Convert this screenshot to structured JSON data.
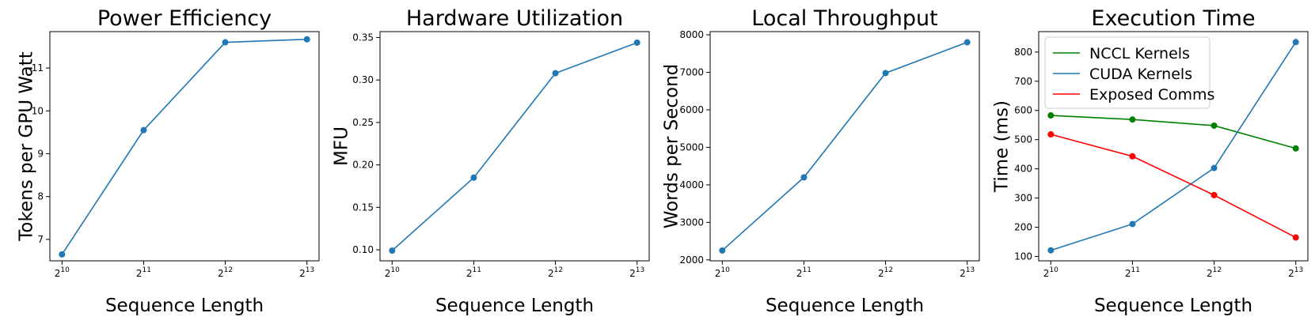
{
  "chart_data": [
    {
      "type": "line",
      "title": "Power Efficiency",
      "xlabel": "Sequence Length",
      "ylabel": "Tokens per GPU Watt",
      "x_tick_base": "2",
      "x": [
        10,
        11,
        12,
        13
      ],
      "ylim": [
        6.5,
        11.85
      ],
      "yticks": [
        "7",
        "8",
        "9",
        "10",
        "11"
      ],
      "series": [
        {
          "color": "#1f77b4",
          "values": [
            6.65,
            9.55,
            11.6,
            11.67
          ]
        }
      ]
    },
    {
      "type": "line",
      "title": "Hardware Utilization",
      "xlabel": "Sequence Length",
      "ylabel": "MFU",
      "x_tick_base": "2",
      "x": [
        10,
        11,
        12,
        13
      ],
      "ylim": [
        0.087,
        0.357
      ],
      "yticks": [
        "0.10",
        "0.15",
        "0.20",
        "0.25",
        "0.30",
        "0.35"
      ],
      "series": [
        {
          "color": "#1f77b4",
          "values": [
            0.099,
            0.185,
            0.308,
            0.344
          ]
        }
      ]
    },
    {
      "type": "line",
      "title": "Local Throughput",
      "xlabel": "Sequence Length",
      "ylabel": "Words per Second",
      "x_tick_base": "2",
      "x": [
        10,
        11,
        12,
        13
      ],
      "ylim": [
        1975,
        8085
      ],
      "yticks": [
        "2000",
        "3000",
        "4000",
        "5000",
        "6000",
        "7000",
        "8000"
      ],
      "series": [
        {
          "color": "#1f77b4",
          "values": [
            2250,
            4200,
            6980,
            7800
          ]
        }
      ]
    },
    {
      "type": "line",
      "title": "Execution Time",
      "xlabel": "Sequence Length",
      "ylabel": "Time (ms)",
      "x_tick_base": "2",
      "x": [
        10,
        11,
        12,
        13
      ],
      "ylim": [
        85,
        870
      ],
      "yticks": [
        "100",
        "200",
        "300",
        "400",
        "500",
        "600",
        "700",
        "800"
      ],
      "legend": "upper-left",
      "series": [
        {
          "name": "NCCL Kernels",
          "color": "#008000",
          "values": [
            583,
            569,
            548,
            470
          ]
        },
        {
          "name": "CUDA Kernels",
          "color": "#1f77b4",
          "values": [
            121,
            211,
            403,
            834
          ]
        },
        {
          "name": "Exposed Comms",
          "color": "#ff0000",
          "values": [
            518,
            443,
            310,
            165
          ]
        }
      ]
    }
  ]
}
